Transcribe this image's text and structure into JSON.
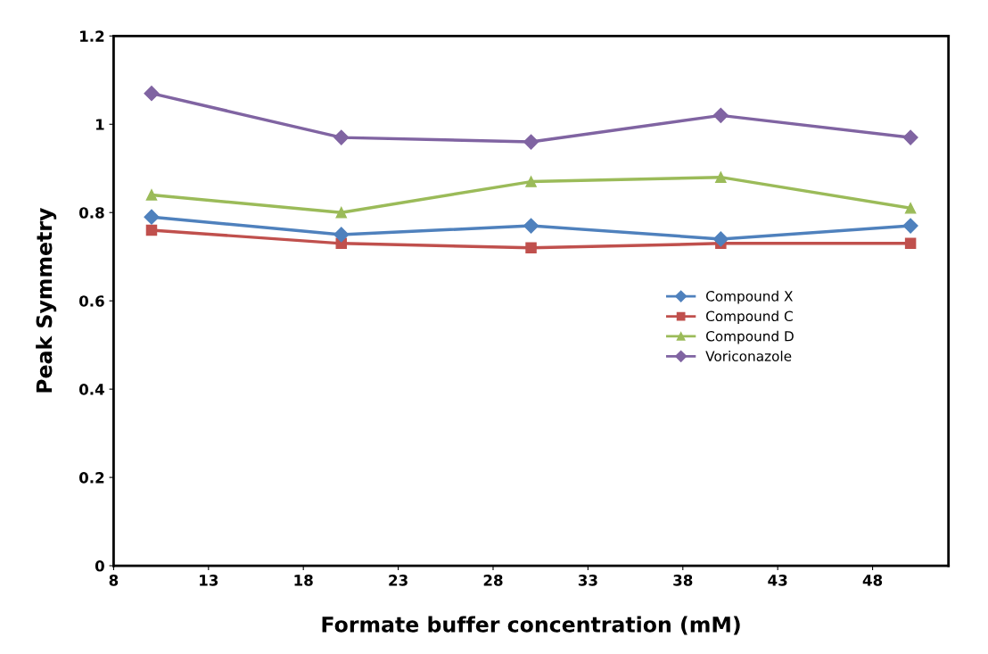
{
  "chart_data": {
    "type": "line",
    "xlabel": "Formate buffer concentration (mM)",
    "ylabel": "Peak Symmetry",
    "x": [
      10,
      20,
      30,
      40,
      50
    ],
    "series": [
      {
        "name": "Compound X",
        "color": "#4f81bd",
        "marker": "diamond",
        "values": [
          0.79,
          0.75,
          0.77,
          0.74,
          0.77
        ]
      },
      {
        "name": "Compound C",
        "color": "#c0504d",
        "marker": "square",
        "values": [
          0.76,
          0.73,
          0.72,
          0.73,
          0.73
        ]
      },
      {
        "name": "Compound D",
        "color": "#9bbb59",
        "marker": "triangle",
        "values": [
          0.84,
          0.8,
          0.87,
          0.88,
          0.81
        ]
      },
      {
        "name": "Voriconazole",
        "color": "#8064a2",
        "marker": "diamond",
        "values": [
          1.07,
          0.97,
          0.96,
          1.02,
          0.97
        ]
      }
    ],
    "xlim": [
      8,
      52
    ],
    "xticks": [
      8,
      13,
      18,
      23,
      28,
      33,
      38,
      43,
      48
    ],
    "ylim": [
      0,
      1.2
    ],
    "yticks": [
      0,
      {
        "value": 0.2,
        "label": "0.2"
      },
      {
        "value": 0.4,
        "label": "0.4"
      },
      {
        "value": 0.6,
        "label": "0.6"
      },
      {
        "value": 0.8,
        "label": "0.8"
      },
      1,
      {
        "value": 1.2,
        "label": "1.2"
      }
    ],
    "grid": false,
    "legend": "right",
    "line_style": "solid"
  }
}
